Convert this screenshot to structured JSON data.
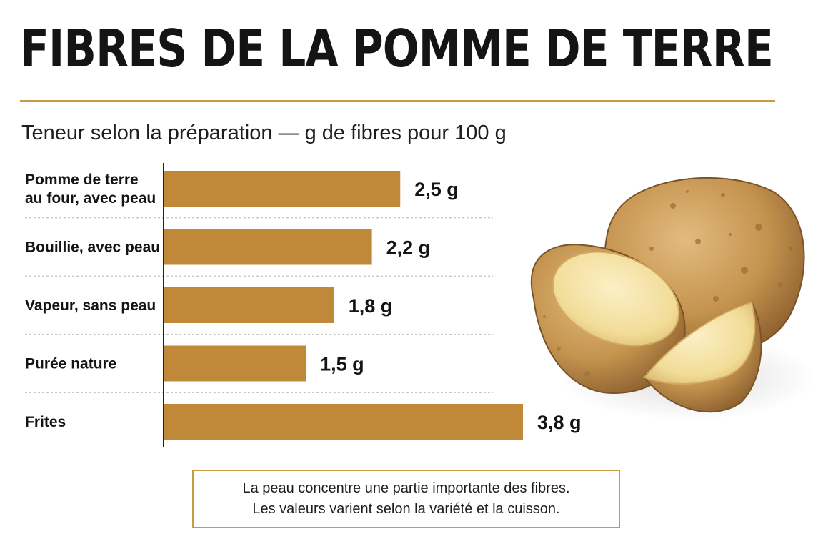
{
  "chart_data": {
    "type": "bar",
    "orientation": "horizontal",
    "title": "FIBRES DE LA POMME DE TERRE",
    "subtitle": "Teneur selon la préparation — g de fibres pour 100 g",
    "categories": [
      [
        "Pomme de terre",
        "au four, avec peau"
      ],
      [
        "Bouillie, avec peau"
      ],
      [
        "Vapeur, sans peau"
      ],
      [
        "Purée nature"
      ],
      [
        "Frites"
      ]
    ],
    "values": [
      2.5,
      2.2,
      1.8,
      1.5,
      3.8
    ],
    "value_labels": [
      "2,5 g",
      "2,2 g",
      "1,8 g",
      "1,5 g",
      "3,8 g"
    ],
    "unit": "g",
    "grid": false,
    "bar_color": "#c0893a"
  },
  "note": {
    "lines": [
      "La peau concentre une partie importante des fibres.",
      "Les valeurs varient selon la variété et la cuisson."
    ]
  },
  "illustration": {
    "icon": "potato-illustration-icon"
  },
  "colors": {
    "accent": "#c79a45",
    "bar": "#c0893a",
    "text": "#141414"
  }
}
